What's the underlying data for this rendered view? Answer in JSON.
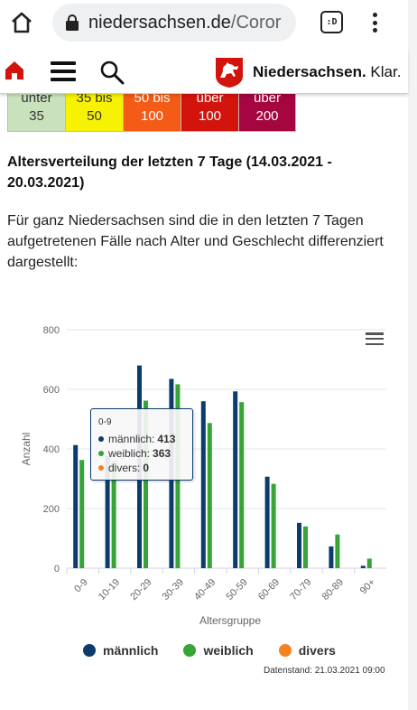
{
  "browser": {
    "url_domain": "niedersachsen.de",
    "url_path": "/Coror",
    "tab_count": ":D"
  },
  "site": {
    "brand_bold": "Niedersachsen.",
    "brand_suffix": " Klar."
  },
  "incidence_tiles": [
    {
      "top": "unter",
      "bottom": "35",
      "color": "#c9e2bd"
    },
    {
      "top": "35 bis",
      "bottom": "50",
      "color": "#f7f300"
    },
    {
      "top": "50 bis",
      "bottom": "100",
      "color": "#f45b16"
    },
    {
      "top": "über",
      "bottom": "100",
      "color": "#d3140d"
    },
    {
      "top": "über",
      "bottom": "200",
      "color": "#a6063f"
    }
  ],
  "section": {
    "heading": "Altersverteilung der letzten 7 Tage (14.03.2021 - 20.03.2021)",
    "paragraph": "Für ganz Niedersachsen sind die in den letzten 7 Tagen aufgetretenen Fälle nach Alter und Geschlecht differenziert dargestellt:"
  },
  "chart_data": {
    "type": "bar",
    "categories": [
      "0-9",
      "10-19",
      "20-29",
      "30-39",
      "40-49",
      "50-59",
      "60-69",
      "70-79",
      "80-89",
      "90+"
    ],
    "series": [
      {
        "name": "männlich",
        "color": "#0b3c6b",
        "values": [
          413,
          375,
          680,
          635,
          560,
          593,
          307,
          152,
          73,
          8
        ]
      },
      {
        "name": "weiblich",
        "color": "#35a535",
        "values": [
          363,
          360,
          562,
          617,
          487,
          557,
          283,
          140,
          113,
          32
        ]
      },
      {
        "name": "divers",
        "color": "#f58220",
        "values": [
          0,
          0,
          0,
          0,
          0,
          0,
          0,
          0,
          0,
          0
        ]
      }
    ],
    "ylim": [
      0,
      800
    ],
    "yticks": [
      0,
      200,
      400,
      600,
      800
    ],
    "xlabel": "Altersgruppe",
    "ylabel": "Anzahl",
    "legend_position": "bottom",
    "grid": true
  },
  "tooltip": {
    "title": "0-9",
    "rows": [
      {
        "label": "männlich:",
        "value": "413",
        "color": "#0b3c6b"
      },
      {
        "label": "weiblich:",
        "value": "363",
        "color": "#35a535"
      },
      {
        "label": "divers:",
        "value": "0",
        "color": "#f58220"
      }
    ]
  },
  "footer": {
    "datenstand": "Datenstand: 21.03.2021 09:00"
  }
}
